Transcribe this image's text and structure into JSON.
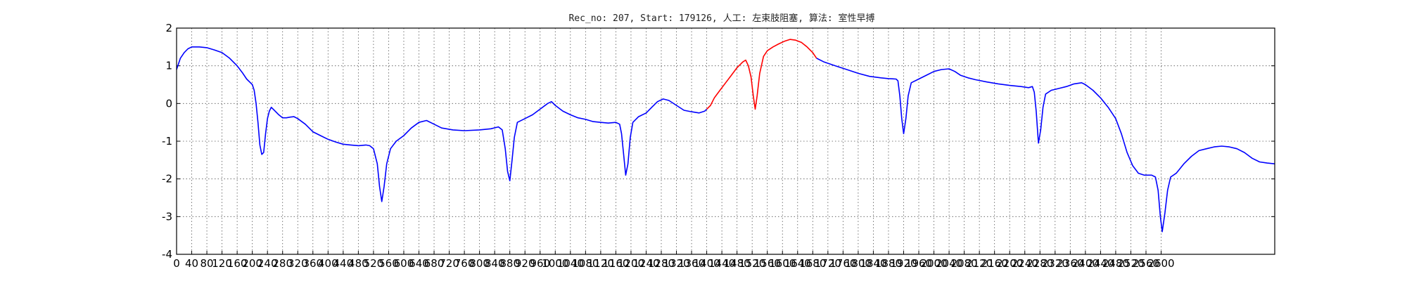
{
  "chart_data": {
    "type": "line",
    "title": "Rec_no: 207, Start: 179126, 人工: 左束肢阻塞, 算法: 室性早搏",
    "xlabel": "",
    "ylabel": "",
    "xlim": [
      0,
      2900
    ],
    "ylim": [
      -4,
      2
    ],
    "grid": true,
    "x_ticks": [
      0,
      40,
      80,
      120,
      160,
      200,
      240,
      280,
      320,
      360,
      400,
      440,
      480,
      520,
      560,
      600,
      640,
      680,
      720,
      760,
      800,
      840,
      880,
      920,
      960,
      1000,
      1040,
      1080,
      1120,
      1160,
      1200,
      1240,
      1280,
      1320,
      1360,
      1400,
      1440,
      1480,
      1520,
      1560,
      1600,
      1640,
      1680,
      1720,
      1760,
      1800,
      1840,
      1880,
      1920,
      1960,
      2000,
      2040,
      2080,
      2120,
      2160,
      2200,
      2240,
      2280,
      2320,
      2360,
      2400,
      2440,
      2480,
      2520,
      2560,
      2600
    ],
    "x_tick_labels": [
      "0",
      "40",
      "80",
      "120",
      "160",
      "200",
      "240",
      "280",
      "320",
      "360",
      "400",
      "440",
      "480",
      "520",
      "560",
      "600",
      "640",
      "680",
      "720",
      "760",
      "800",
      "840",
      "880",
      "920",
      "960",
      "1000",
      "1040",
      "1080",
      "1120",
      "1160",
      "1200",
      "1240",
      "1280",
      "1320",
      "1360",
      "1400",
      "1440",
      "1480",
      "1520",
      "1560",
      "1600",
      "1640",
      "1680",
      "1720",
      "1760",
      "1800",
      "1840",
      "1880",
      "1920",
      "1960",
      "2000",
      "2040",
      "2080",
      "2120",
      "2160",
      "2200",
      "2240",
      "2280",
      "2320",
      "2360",
      "2400",
      "2440",
      "2480",
      "2520",
      "2560",
      "2600"
    ],
    "y_ticks": [
      2,
      1,
      0,
      -1,
      -2,
      -3,
      -4
    ],
    "colors": {
      "normal": "#0000ff",
      "highlight": "#ff0000"
    },
    "series": [
      {
        "color": "#0000ff",
        "points": [
          [
            0,
            0.9
          ],
          [
            10,
            1.2
          ],
          [
            20,
            1.35
          ],
          [
            30,
            1.45
          ],
          [
            40,
            1.5
          ],
          [
            60,
            1.5
          ],
          [
            80,
            1.48
          ],
          [
            100,
            1.42
          ],
          [
            120,
            1.35
          ],
          [
            140,
            1.2
          ],
          [
            160,
            1.0
          ],
          [
            175,
            0.8
          ],
          [
            185,
            0.65
          ],
          [
            195,
            0.55
          ],
          [
            200,
            0.5
          ],
          [
            205,
            0.35
          ],
          [
            210,
            0.0
          ],
          [
            215,
            -0.5
          ],
          [
            220,
            -1.1
          ],
          [
            225,
            -1.35
          ],
          [
            230,
            -1.3
          ],
          [
            235,
            -0.8
          ],
          [
            240,
            -0.4
          ],
          [
            245,
            -0.2
          ],
          [
            250,
            -0.1
          ],
          [
            260,
            -0.2
          ],
          [
            270,
            -0.3
          ],
          [
            280,
            -0.38
          ],
          [
            290,
            -0.38
          ],
          [
            300,
            -0.36
          ],
          [
            310,
            -0.35
          ],
          [
            320,
            -0.4
          ],
          [
            340,
            -0.55
          ],
          [
            360,
            -0.75
          ],
          [
            380,
            -0.85
          ],
          [
            400,
            -0.95
          ],
          [
            420,
            -1.02
          ],
          [
            440,
            -1.08
          ],
          [
            460,
            -1.1
          ],
          [
            480,
            -1.12
          ],
          [
            500,
            -1.1
          ],
          [
            510,
            -1.12
          ],
          [
            520,
            -1.2
          ],
          [
            530,
            -1.6
          ],
          [
            536,
            -2.2
          ],
          [
            542,
            -2.6
          ],
          [
            548,
            -2.2
          ],
          [
            555,
            -1.6
          ],
          [
            565,
            -1.2
          ],
          [
            580,
            -1.0
          ],
          [
            600,
            -0.85
          ],
          [
            620,
            -0.65
          ],
          [
            640,
            -0.5
          ],
          [
            660,
            -0.45
          ],
          [
            680,
            -0.55
          ],
          [
            700,
            -0.65
          ],
          [
            730,
            -0.7
          ],
          [
            760,
            -0.72
          ],
          [
            800,
            -0.7
          ],
          [
            830,
            -0.67
          ],
          [
            850,
            -0.62
          ],
          [
            860,
            -0.7
          ],
          [
            868,
            -1.2
          ],
          [
            874,
            -1.8
          ],
          [
            880,
            -2.05
          ],
          [
            886,
            -1.5
          ],
          [
            892,
            -0.9
          ],
          [
            900,
            -0.5
          ],
          [
            920,
            -0.4
          ],
          [
            940,
            -0.3
          ],
          [
            960,
            -0.15
          ],
          [
            980,
            0.0
          ],
          [
            990,
            0.05
          ],
          [
            1000,
            -0.05
          ],
          [
            1020,
            -0.2
          ],
          [
            1040,
            -0.3
          ],
          [
            1060,
            -0.38
          ],
          [
            1080,
            -0.42
          ],
          [
            1100,
            -0.48
          ],
          [
            1120,
            -0.5
          ],
          [
            1140,
            -0.52
          ],
          [
            1160,
            -0.5
          ],
          [
            1170,
            -0.55
          ],
          [
            1175,
            -0.8
          ],
          [
            1180,
            -1.3
          ],
          [
            1186,
            -1.9
          ],
          [
            1192,
            -1.6
          ],
          [
            1198,
            -0.9
          ],
          [
            1205,
            -0.5
          ],
          [
            1220,
            -0.35
          ],
          [
            1240,
            -0.25
          ],
          [
            1255,
            -0.1
          ],
          [
            1270,
            0.05
          ],
          [
            1285,
            0.12
          ],
          [
            1300,
            0.08
          ],
          [
            1320,
            -0.05
          ],
          [
            1340,
            -0.18
          ],
          [
            1360,
            -0.22
          ],
          [
            1380,
            -0.25
          ],
          [
            1395,
            -0.2
          ],
          [
            1400,
            -0.15
          ]
        ]
      },
      {
        "color": "#ff0000",
        "points": [
          [
            1400,
            -0.15
          ],
          [
            1410,
            -0.05
          ],
          [
            1420,
            0.15
          ],
          [
            1435,
            0.35
          ],
          [
            1450,
            0.55
          ],
          [
            1465,
            0.75
          ],
          [
            1480,
            0.95
          ],
          [
            1495,
            1.1
          ],
          [
            1503,
            1.15
          ],
          [
            1510,
            1.0
          ],
          [
            1517,
            0.7
          ],
          [
            1523,
            0.2
          ],
          [
            1528,
            -0.15
          ],
          [
            1533,
            0.2
          ],
          [
            1540,
            0.8
          ],
          [
            1550,
            1.25
          ],
          [
            1560,
            1.4
          ],
          [
            1575,
            1.5
          ],
          [
            1590,
            1.58
          ],
          [
            1605,
            1.65
          ],
          [
            1620,
            1.7
          ],
          [
            1635,
            1.68
          ],
          [
            1650,
            1.62
          ],
          [
            1665,
            1.5
          ],
          [
            1680,
            1.35
          ],
          [
            1690,
            1.2
          ]
        ]
      },
      {
        "color": "#0000ff",
        "points": [
          [
            1690,
            1.2
          ],
          [
            1710,
            1.1
          ],
          [
            1740,
            1.0
          ],
          [
            1770,
            0.9
          ],
          [
            1800,
            0.8
          ],
          [
            1830,
            0.72
          ],
          [
            1860,
            0.68
          ],
          [
            1880,
            0.66
          ],
          [
            1900,
            0.65
          ],
          [
            1905,
            0.6
          ],
          [
            1910,
            0.2
          ],
          [
            1915,
            -0.4
          ],
          [
            1920,
            -0.8
          ],
          [
            1926,
            -0.4
          ],
          [
            1932,
            0.2
          ],
          [
            1940,
            0.55
          ],
          [
            1960,
            0.65
          ],
          [
            1980,
            0.75
          ],
          [
            2000,
            0.85
          ],
          [
            2020,
            0.9
          ],
          [
            2040,
            0.92
          ],
          [
            2055,
            0.85
          ],
          [
            2070,
            0.75
          ],
          [
            2090,
            0.68
          ],
          [
            2110,
            0.63
          ],
          [
            2140,
            0.57
          ],
          [
            2170,
            0.52
          ],
          [
            2200,
            0.48
          ],
          [
            2230,
            0.45
          ],
          [
            2250,
            0.42
          ],
          [
            2260,
            0.45
          ],
          [
            2265,
            0.3
          ],
          [
            2270,
            -0.2
          ],
          [
            2276,
            -1.05
          ],
          [
            2282,
            -0.7
          ],
          [
            2288,
            -0.1
          ],
          [
            2295,
            0.25
          ],
          [
            2310,
            0.35
          ],
          [
            2330,
            0.4
          ],
          [
            2350,
            0.45
          ],
          [
            2370,
            0.52
          ],
          [
            2390,
            0.55
          ],
          [
            2400,
            0.5
          ],
          [
            2420,
            0.35
          ],
          [
            2440,
            0.15
          ],
          [
            2460,
            -0.1
          ],
          [
            2480,
            -0.4
          ],
          [
            2495,
            -0.8
          ],
          [
            2510,
            -1.3
          ],
          [
            2525,
            -1.65
          ],
          [
            2540,
            -1.85
          ],
          [
            2555,
            -1.9
          ],
          [
            2575,
            -1.9
          ],
          [
            2585,
            -1.95
          ],
          [
            2592,
            -2.3
          ],
          [
            2598,
            -3.0
          ],
          [
            2603,
            -3.4
          ],
          [
            2610,
            -2.9
          ],
          [
            2617,
            -2.3
          ],
          [
            2625,
            -1.95
          ],
          [
            2640,
            -1.85
          ],
          [
            2660,
            -1.6
          ],
          [
            2680,
            -1.4
          ],
          [
            2700,
            -1.25
          ],
          [
            2720,
            -1.2
          ],
          [
            2740,
            -1.15
          ],
          [
            2760,
            -1.13
          ],
          [
            2780,
            -1.15
          ],
          [
            2800,
            -1.2
          ],
          [
            2820,
            -1.3
          ],
          [
            2840,
            -1.45
          ],
          [
            2860,
            -1.55
          ],
          [
            2880,
            -1.58
          ],
          [
            2900,
            -1.6
          ]
        ]
      }
    ]
  }
}
